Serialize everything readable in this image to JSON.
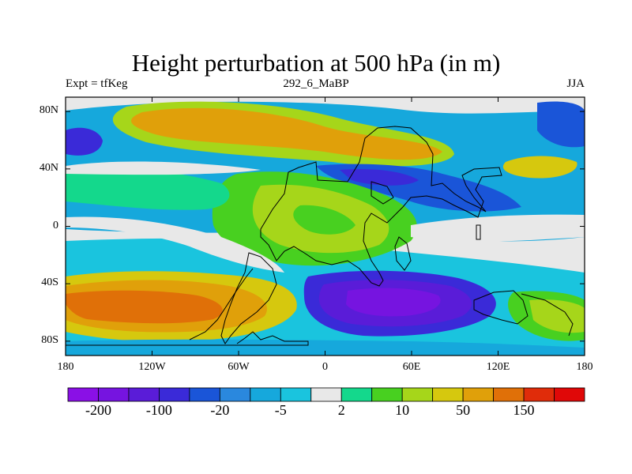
{
  "title": "Height perturbation at 500 hPa (in m)",
  "subtitle_left": "Expt = tfKeg",
  "subtitle_center": "292_6_MaBP",
  "subtitle_right": "JJA",
  "lat_ticks": [
    {
      "label": "80N",
      "lat": 80
    },
    {
      "label": "40N",
      "lat": 40
    },
    {
      "label": "0",
      "lat": 0
    },
    {
      "label": "40S",
      "lat": -40
    },
    {
      "label": "80S",
      "lat": -80
    }
  ],
  "lon_ticks": [
    {
      "label": "180",
      "lon": -180
    },
    {
      "label": "120W",
      "lon": -120
    },
    {
      "label": "60W",
      "lon": -60
    },
    {
      "label": "0",
      "lon": 0
    },
    {
      "label": "60E",
      "lon": 60
    },
    {
      "label": "120E",
      "lon": 120
    },
    {
      "label": "180",
      "lon": 180
    }
  ],
  "colorbar": {
    "colors": [
      "#8a10e6",
      "#7614e0",
      "#5a1cd8",
      "#3a2ad8",
      "#1a55d8",
      "#2a88de",
      "#16a8dc",
      "#1ac4de",
      "#e8e8e8",
      "#14d88c",
      "#48d020",
      "#a6d61a",
      "#d6c80e",
      "#e0a00a",
      "#e07008",
      "#e02c0a",
      "#e00808"
    ],
    "labels": [
      {
        "text": "-200",
        "index": 1
      },
      {
        "text": "-100",
        "index": 3
      },
      {
        "text": "-20",
        "index": 5
      },
      {
        "text": "-5",
        "index": 7
      },
      {
        "text": "2",
        "index": 9
      },
      {
        "text": "10",
        "index": 11
      },
      {
        "text": "50",
        "index": 13
      },
      {
        "text": "150",
        "index": 15
      }
    ]
  }
}
